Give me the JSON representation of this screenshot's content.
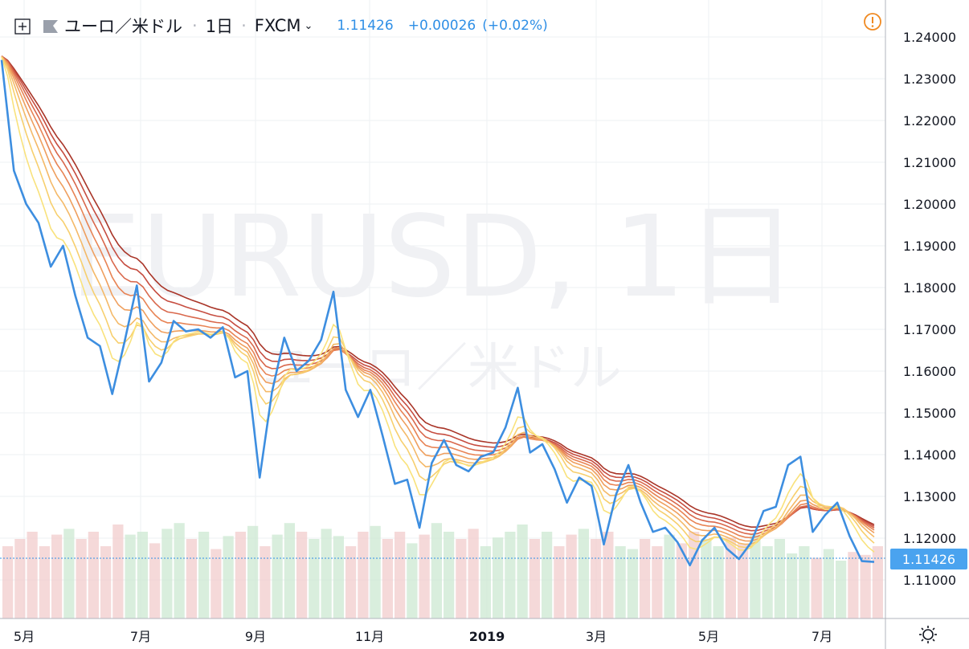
{
  "header": {
    "symbol_name": "ユーロ／米ドル",
    "interval": "1日",
    "source": "FXCM",
    "last_price": "1.11426",
    "change": "+0.00026",
    "change_pct": "(+0.02%)"
  },
  "watermark": {
    "symbol": "EURUSD",
    "interval": "1日",
    "description": "ユーロ／米ドル"
  },
  "last_price_label": "1.11426",
  "colors": {
    "price_line": "#3d8ee0",
    "ribbon": [
      "#f9e27c",
      "#f7cf6e",
      "#f4b968",
      "#ef9f5e",
      "#e88455",
      "#d9684c",
      "#c64d40",
      "#a93528"
    ],
    "last_price_bg": "#4aa3ef",
    "volume_up": "#cce8d2",
    "volume_down": "#f2cccc",
    "grid": "#eef0f3",
    "alert_icon": "#f08a22"
  },
  "chart_data": {
    "type": "line",
    "title": "EURUSD, 1日",
    "x_ticks": [
      "5月",
      "7月",
      "9月",
      "11月",
      "2019",
      "3月",
      "5月",
      "7月"
    ],
    "y_ticks": [
      "1.24000",
      "1.23000",
      "1.22000",
      "1.21000",
      "1.20000",
      "1.19000",
      "1.18000",
      "1.17000",
      "1.16000",
      "1.15000",
      "1.14000",
      "1.13000",
      "1.12000",
      "1.11000"
    ],
    "ylim": [
      1.1,
      1.245
    ],
    "close_series": [
      {
        "t": 0,
        "v": 1.2345
      },
      {
        "t": 2,
        "v": 1.208
      },
      {
        "t": 4,
        "v": 1.2
      },
      {
        "t": 6,
        "v": 1.1955
      },
      {
        "t": 8,
        "v": 1.185
      },
      {
        "t": 10,
        "v": 1.19
      },
      {
        "t": 12,
        "v": 1.178
      },
      {
        "t": 14,
        "v": 1.168
      },
      {
        "t": 16,
        "v": 1.166
      },
      {
        "t": 18,
        "v": 1.1545
      },
      {
        "t": 20,
        "v": 1.167
      },
      {
        "t": 22,
        "v": 1.1805
      },
      {
        "t": 24,
        "v": 1.1575
      },
      {
        "t": 26,
        "v": 1.162
      },
      {
        "t": 28,
        "v": 1.172
      },
      {
        "t": 30,
        "v": 1.1695
      },
      {
        "t": 32,
        "v": 1.17
      },
      {
        "t": 34,
        "v": 1.168
      },
      {
        "t": 36,
        "v": 1.1705
      },
      {
        "t": 38,
        "v": 1.1585
      },
      {
        "t": 40,
        "v": 1.16
      },
      {
        "t": 42,
        "v": 1.1345
      },
      {
        "t": 44,
        "v": 1.155
      },
      {
        "t": 46,
        "v": 1.168
      },
      {
        "t": 48,
        "v": 1.16
      },
      {
        "t": 50,
        "v": 1.1625
      },
      {
        "t": 52,
        "v": 1.1675
      },
      {
        "t": 54,
        "v": 1.179
      },
      {
        "t": 56,
        "v": 1.1555
      },
      {
        "t": 58,
        "v": 1.149
      },
      {
        "t": 60,
        "v": 1.1555
      },
      {
        "t": 62,
        "v": 1.1445
      },
      {
        "t": 64,
        "v": 1.133
      },
      {
        "t": 66,
        "v": 1.134
      },
      {
        "t": 68,
        "v": 1.1225
      },
      {
        "t": 70,
        "v": 1.138
      },
      {
        "t": 72,
        "v": 1.1435
      },
      {
        "t": 74,
        "v": 1.1375
      },
      {
        "t": 76,
        "v": 1.136
      },
      {
        "t": 78,
        "v": 1.1395
      },
      {
        "t": 80,
        "v": 1.1405
      },
      {
        "t": 82,
        "v": 1.1465
      },
      {
        "t": 84,
        "v": 1.156
      },
      {
        "t": 86,
        "v": 1.1405
      },
      {
        "t": 88,
        "v": 1.1425
      },
      {
        "t": 90,
        "v": 1.1365
      },
      {
        "t": 92,
        "v": 1.1285
      },
      {
        "t": 94,
        "v": 1.1345
      },
      {
        "t": 96,
        "v": 1.1325
      },
      {
        "t": 98,
        "v": 1.1185
      },
      {
        "t": 100,
        "v": 1.1305
      },
      {
        "t": 102,
        "v": 1.1375
      },
      {
        "t": 104,
        "v": 1.1285
      },
      {
        "t": 106,
        "v": 1.1215
      },
      {
        "t": 108,
        "v": 1.1225
      },
      {
        "t": 110,
        "v": 1.119
      },
      {
        "t": 112,
        "v": 1.1135
      },
      {
        "t": 114,
        "v": 1.1195
      },
      {
        "t": 116,
        "v": 1.1225
      },
      {
        "t": 118,
        "v": 1.1175
      },
      {
        "t": 120,
        "v": 1.115
      },
      {
        "t": 122,
        "v": 1.119
      },
      {
        "t": 124,
        "v": 1.1265
      },
      {
        "t": 126,
        "v": 1.1275
      },
      {
        "t": 128,
        "v": 1.1375
      },
      {
        "t": 130,
        "v": 1.1395
      },
      {
        "t": 132,
        "v": 1.1215
      },
      {
        "t": 134,
        "v": 1.1255
      },
      {
        "t": 136,
        "v": 1.1285
      },
      {
        "t": 138,
        "v": 1.1205
      },
      {
        "t": 140,
        "v": 1.1145
      },
      {
        "t": 142,
        "v": 1.1143
      }
    ],
    "volume": [
      0.5,
      0.55,
      0.6,
      0.5,
      0.58,
      0.62,
      0.55,
      0.6,
      0.5,
      0.65,
      0.58,
      0.6,
      0.52,
      0.62,
      0.66,
      0.55,
      0.6,
      0.48,
      0.57,
      0.6,
      0.64,
      0.5,
      0.58,
      0.66,
      0.6,
      0.55,
      0.62,
      0.57,
      0.5,
      0.6,
      0.64,
      0.55,
      0.6,
      0.52,
      0.58,
      0.66,
      0.6,
      0.55,
      0.62,
      0.5,
      0.56,
      0.6,
      0.65,
      0.55,
      0.6,
      0.5,
      0.58,
      0.62,
      0.55,
      0.6,
      0.5,
      0.48,
      0.55,
      0.5,
      0.58,
      0.52,
      0.6,
      0.55,
      0.5,
      0.56,
      0.52,
      0.58,
      0.5,
      0.55,
      0.45,
      0.5,
      0.42,
      0.48,
      0.4,
      0.46,
      0.44,
      0.5
    ],
    "ribbon_lengths": [
      5,
      8,
      11,
      14,
      17,
      20,
      23,
      26
    ]
  }
}
